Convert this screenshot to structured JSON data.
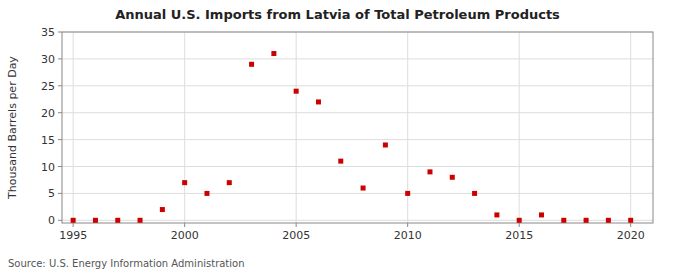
{
  "chart_data": {
    "type": "scatter",
    "title": "Annual U.S. Imports from Latvia of Total Petroleum Products",
    "y_label": "Thousand Barrels per Day",
    "annotations": [
      "Source: U.S. Energy Information Administration"
    ],
    "x": [
      1995,
      1996,
      1997,
      1998,
      1999,
      2000,
      2001,
      2002,
      2003,
      2004,
      2005,
      2006,
      2007,
      2008,
      2009,
      2010,
      2011,
      2012,
      2013,
      2014,
      2015,
      2016,
      2017,
      2018,
      2019,
      2020
    ],
    "values": [
      0,
      0,
      0,
      0,
      2,
      7,
      5,
      7,
      29,
      31,
      24,
      22,
      11,
      6,
      14,
      5,
      9,
      8,
      5,
      1,
      0,
      1,
      0,
      0,
      0,
      0
    ],
    "color": "#cc0000",
    "marker": "square",
    "xlim": [
      1994.5,
      2021
    ],
    "ylim": [
      -0.5,
      35
    ],
    "xticks": [
      1995,
      2000,
      2005,
      2010,
      2015,
      2020
    ],
    "yticks": [
      0,
      5,
      10,
      15,
      20,
      25,
      30,
      35
    ],
    "grid": true
  }
}
